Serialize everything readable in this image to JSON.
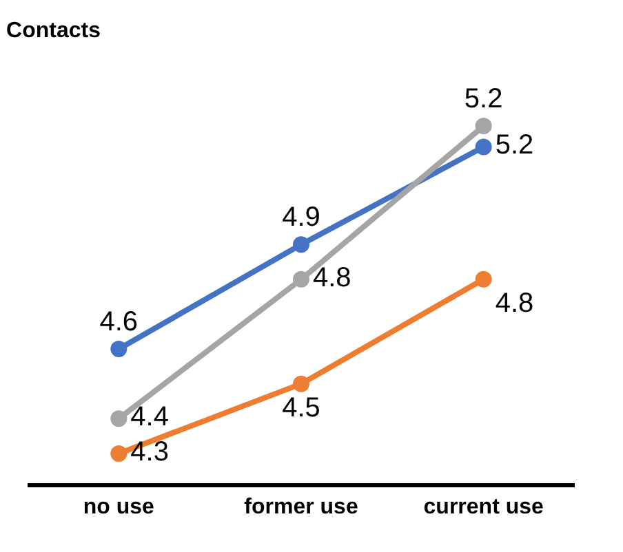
{
  "chart_data": {
    "type": "line",
    "title": "Contacts",
    "categories": [
      "no use",
      "former use",
      "current use"
    ],
    "marker": "circle",
    "grid": false,
    "series": [
      {
        "color": "#4472c4",
        "values": [
          4.6,
          4.9,
          5.18
        ],
        "value_labels": [
          "4.6",
          "4.9",
          "5.2"
        ]
      },
      {
        "color": "#ed7d31",
        "values": [
          4.3,
          4.5,
          4.8
        ],
        "value_labels": [
          "4.3",
          "4.5",
          "4.8"
        ]
      },
      {
        "color": "#a5a5a5",
        "values": [
          4.4,
          4.8,
          5.24
        ],
        "value_labels": [
          "4.4",
          "4.8",
          "5.2"
        ]
      }
    ]
  }
}
